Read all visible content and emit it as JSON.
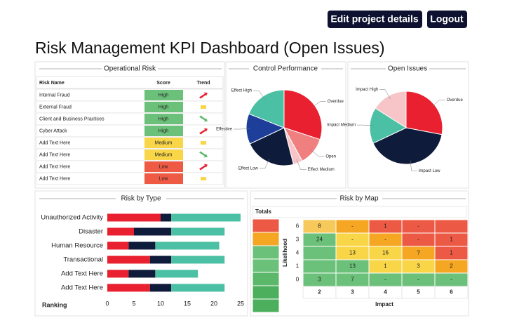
{
  "header": {
    "buttons": [
      "Edit project details",
      "Logout"
    ]
  },
  "title": "Risk Management KPI Dashboard (Open Issues)",
  "operational_risk": {
    "title": "Operational Risk",
    "columns": [
      "Risk Name",
      "Score",
      "Trend"
    ],
    "rows": [
      {
        "name": "Internal Fraud",
        "score": "High",
        "score_color": "#6cc17a"
      },
      {
        "name": "External Fraud",
        "score": "High",
        "score_color": "#6cc17a"
      },
      {
        "name": "Client and Business Practices",
        "score": "High",
        "score_color": "#6cc17a"
      },
      {
        "name": "Cyber Attack",
        "score": "High",
        "score_color": "#6cc17a"
      },
      {
        "name": "Add Text Here",
        "score": "Medium",
        "score_color": "#f9d648"
      },
      {
        "name": "Add Text Here",
        "score": "Medium",
        "score_color": "#f9d648"
      },
      {
        "name": "Add Text Here",
        "score": "Low",
        "score_color": "#ef5a45"
      },
      {
        "name": "Add Text Here",
        "score": "Low",
        "score_color": "#ef5a45"
      }
    ]
  },
  "chart_data": [
    {
      "type": "pie",
      "title": "Control Performance",
      "categories": [
        "Overdue",
        "Open",
        "Effect Medium",
        "Effect Low",
        "Effective",
        "Effect High"
      ],
      "values": [
        30,
        12,
        4,
        22,
        13,
        19
      ],
      "colors": [
        "#e8202f",
        "#f08080",
        "#f7c5c8",
        "#0f1b3a",
        "#1d3f9a",
        "#4cc0a4"
      ]
    },
    {
      "type": "pie",
      "title": "Open Issues",
      "categories": [
        "Overdue",
        "Impact Low",
        "Impact Medium",
        "Impact High"
      ],
      "values": [
        28,
        40,
        16,
        16
      ],
      "colors": [
        "#e8202f",
        "#0f1b3a",
        "#4cc0a4",
        "#f7c5c8"
      ]
    },
    {
      "type": "bar",
      "stacked": true,
      "orientation": "horizontal",
      "title": "Risk by Type",
      "xlabel": "Ranking",
      "categories": [
        "Unauthorized Activity",
        "Disaster",
        "Human Resource",
        "Transactional",
        "Add Text Here",
        "Add Text Here"
      ],
      "series": [
        {
          "color": "#e8202f",
          "values": [
            10,
            5,
            4,
            8,
            4,
            8
          ]
        },
        {
          "color": "#0f1b3a",
          "values": [
            2,
            7,
            5,
            4,
            5,
            4
          ]
        },
        {
          "color": "#4cc0a4",
          "values": [
            13,
            10,
            12,
            10,
            8,
            10
          ]
        }
      ],
      "xlim": [
        0,
        25
      ],
      "xticks": [
        0,
        5,
        10,
        15,
        20,
        25
      ]
    }
  ],
  "risk_map": {
    "title": "Risk by Map",
    "totals_label": "Totals",
    "y_label": "Likelihood",
    "x_label": "Impact",
    "rows": [
      6,
      3,
      4,
      1,
      0
    ],
    "columns": [
      2,
      3,
      4,
      5,
      6
    ],
    "cells": [
      [
        {
          "text": "8",
          "color": "#f7c85a"
        },
        {
          "text": "-",
          "color": "#f5a623"
        },
        {
          "text": "1",
          "color": "#ec5a45"
        },
        {
          "text": "-",
          "color": "#ec5a45"
        },
        {
          "color": "#ec5a45"
        }
      ],
      [
        {
          "text": "24",
          "color": "#6cc17a"
        },
        {
          "text": "-",
          "color": "#f9d648"
        },
        {
          "text": "-",
          "color": "#f5a623"
        },
        {
          "text": "-",
          "color": "#ec5a45"
        },
        {
          "text": "1",
          "color": "#ec5a45"
        }
      ],
      [
        {
          "color": "#6cc17a"
        },
        {
          "text": "13",
          "color": "#f9d648"
        },
        {
          "text": "16",
          "color": "#f9d648"
        },
        {
          "text": "?",
          "color": "#f5a623"
        },
        {
          "text": "1",
          "color": "#ec5a45"
        }
      ],
      [
        {
          "color": "#6cc17a"
        },
        {
          "text": "13",
          "color": "#6cc17a"
        },
        {
          "text": "1",
          "color": "#f9d648"
        },
        {
          "text": "3",
          "color": "#f9d648"
        },
        {
          "text": "2",
          "color": "#f5a623"
        }
      ],
      [
        {
          "text": "3",
          "color": "#6cc17a"
        },
        {
          "text": "7",
          "color": "#6cc17a"
        },
        {
          "text": "-",
          "color": "#6cc17a"
        },
        {
          "text": "-",
          "color": "#6cc17a"
        },
        {
          "text": "-",
          "color": "#6cc17a"
        }
      ]
    ]
  }
}
